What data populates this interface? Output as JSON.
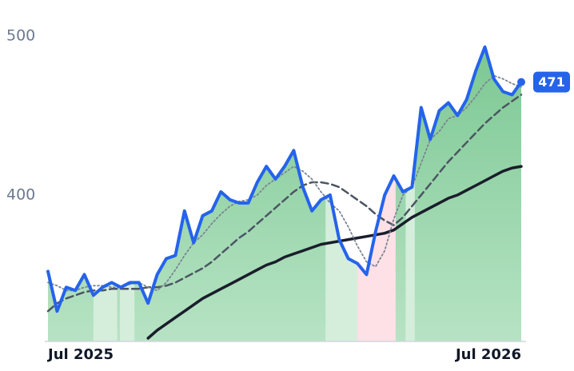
{
  "chart_data": {
    "type": "line",
    "categories": [
      "Jul 2025",
      null,
      null,
      null,
      null,
      null,
      null,
      null,
      null,
      null,
      null,
      null,
      null,
      null,
      null,
      null,
      null,
      null,
      null,
      null,
      null,
      null,
      null,
      null,
      null,
      null,
      null,
      null,
      null,
      null,
      null,
      null,
      null,
      null,
      null,
      null,
      null,
      null,
      null,
      null,
      null,
      null,
      null,
      null,
      null,
      null,
      null,
      null,
      null,
      null,
      null,
      null,
      "Jul 2026"
    ],
    "series": [
      {
        "color": "#2563eb",
        "dash": "solid",
        "values": [
          352,
          327,
          342,
          340,
          350,
          337,
          342,
          345,
          342,
          345,
          345,
          332,
          350,
          360,
          362,
          390,
          370,
          387,
          390,
          402,
          397,
          395,
          395,
          408,
          418,
          410,
          418,
          428,
          405,
          390,
          397,
          400,
          372,
          360,
          357,
          350,
          377,
          400,
          412,
          402,
          405,
          455,
          435,
          453,
          458,
          450,
          460,
          478,
          493,
          473,
          465,
          463,
          471
        ]
      },
      {
        "color": "#7b8494",
        "dash": "dotted",
        "values": [
          345,
          343,
          340,
          340,
          342,
          343,
          343,
          342,
          342,
          344,
          345,
          342,
          340,
          345,
          353,
          362,
          370,
          375,
          382,
          388,
          393,
          396,
          397,
          400,
          406,
          410,
          414,
          418,
          415,
          410,
          402,
          395,
          390,
          380,
          368,
          358,
          355,
          365,
          385,
          400,
          405,
          420,
          435,
          440,
          448,
          450,
          455,
          462,
          470,
          475,
          473,
          470,
          468
        ]
      },
      {
        "color": "#4b5563",
        "dash": "dashed",
        "values": [
          327,
          332,
          335,
          337,
          339,
          340,
          340,
          341,
          341,
          341,
          341,
          342,
          342,
          343,
          345,
          348,
          351,
          354,
          358,
          363,
          368,
          373,
          377,
          382,
          387,
          392,
          397,
          402,
          406,
          408,
          408,
          407,
          405,
          401,
          397,
          393,
          388,
          384,
          381,
          386,
          393,
          400,
          407,
          414,
          421,
          427,
          433,
          439,
          445,
          450,
          455,
          459,
          463
        ]
      },
      {
        "color": "#1a1d2b",
        "dash": "solid",
        "values": [
          null,
          null,
          null,
          null,
          null,
          null,
          null,
          null,
          null,
          null,
          null,
          310,
          315,
          319,
          323,
          327,
          331,
          335,
          338,
          341,
          344,
          347,
          350,
          353,
          356,
          358,
          361,
          363,
          365,
          367,
          369,
          370,
          371,
          372,
          373,
          374,
          375,
          376,
          378,
          382,
          386,
          389,
          392,
          395,
          398,
          400,
          403,
          406,
          409,
          412,
          415,
          417,
          418
        ]
      }
    ],
    "area_color": "#7cc893",
    "bands": [
      {
        "start": 5,
        "end": 7.6,
        "color": "#d5eedc"
      },
      {
        "start": 7.9,
        "end": 9.5,
        "color": "#d5eedc"
      },
      {
        "start": 30.5,
        "end": 34,
        "color": "#d5eedc"
      },
      {
        "start": 34,
        "end": 38.2,
        "color": "#fde1e6"
      },
      {
        "start": 39.3,
        "end": 40.3,
        "color": "#d5eedc"
      }
    ],
    "ylim": [
      308,
      510
    ],
    "yticks": [
      400,
      500
    ]
  }
}
